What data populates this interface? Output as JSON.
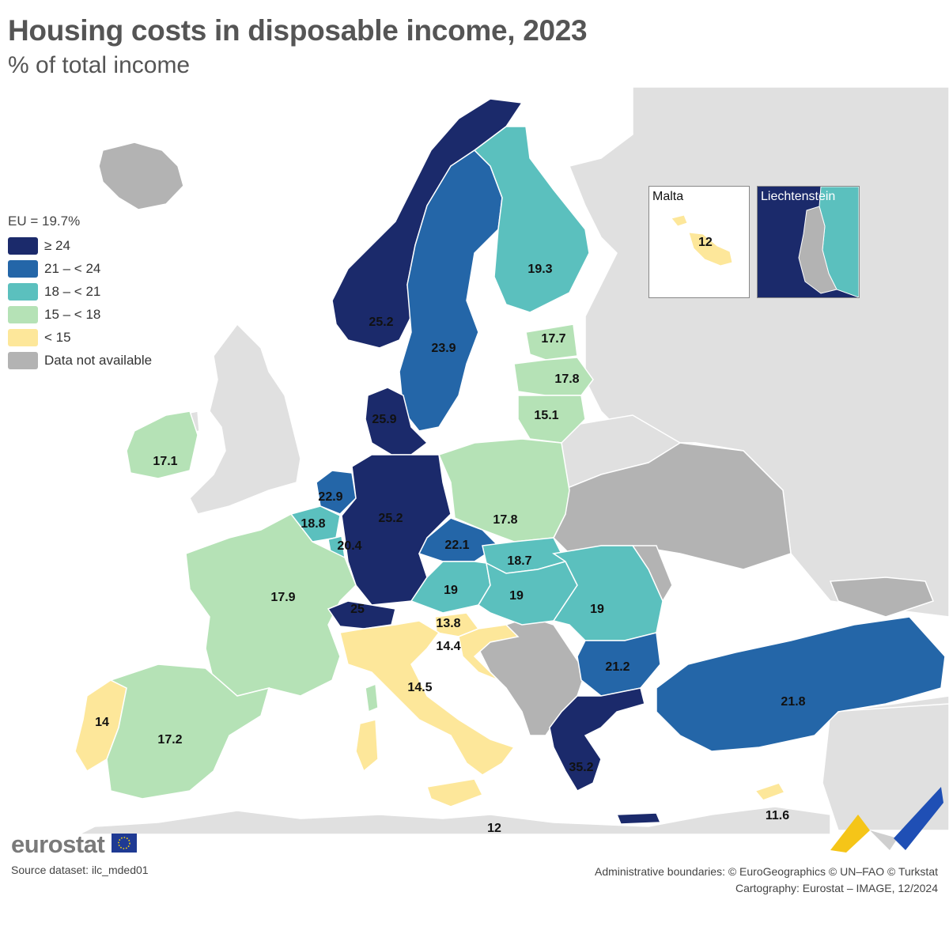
{
  "title": "Housing costs in disposable income, 2023",
  "subtitle": "% of total income",
  "legend": {
    "eu_label": "EU = 19.7%",
    "classes": [
      {
        "label": "≥ 24",
        "color": "#1b2a6b"
      },
      {
        "label": "21 – < 24",
        "color": "#2466a8"
      },
      {
        "label": "18 – < 21",
        "color": "#5bc0be"
      },
      {
        "label": "15 – < 18",
        "color": "#b5e2b6"
      },
      {
        "label": "< 15",
        "color": "#fde79a"
      },
      {
        "label": "Data not available",
        "color": "#b3b3b3"
      }
    ]
  },
  "colors": {
    "sea": "#ffffff",
    "non_eu_land": "#e0e0e0",
    "border": "#555555"
  },
  "countries": [
    {
      "name": "Norway",
      "value": 25.2,
      "label": "25.2"
    },
    {
      "name": "Sweden",
      "value": 23.9,
      "label": "23.9"
    },
    {
      "name": "Finland",
      "value": 19.3,
      "label": "19.3"
    },
    {
      "name": "Estonia",
      "value": 17.7,
      "label": "17.7"
    },
    {
      "name": "Latvia",
      "value": 17.8,
      "label": "17.8"
    },
    {
      "name": "Lithuania",
      "value": 15.1,
      "label": "15.1"
    },
    {
      "name": "Denmark",
      "value": 25.9,
      "label": "25.9"
    },
    {
      "name": "Ireland",
      "value": 17.1,
      "label": "17.1"
    },
    {
      "name": "Netherlands",
      "value": 22.9,
      "label": "22.9"
    },
    {
      "name": "Belgium",
      "value": 18.8,
      "label": "18.8"
    },
    {
      "name": "Luxembourg",
      "value": 20.4,
      "label": "20.4"
    },
    {
      "name": "Germany",
      "value": 25.2,
      "label": "25.2"
    },
    {
      "name": "Poland",
      "value": 17.8,
      "label": "17.8"
    },
    {
      "name": "Czechia",
      "value": 22.1,
      "label": "22.1"
    },
    {
      "name": "Slovakia",
      "value": 18.7,
      "label": "18.7"
    },
    {
      "name": "Austria",
      "value": 19,
      "label": "19"
    },
    {
      "name": "Hungary",
      "value": 19,
      "label": "19"
    },
    {
      "name": "Romania",
      "value": 19,
      "label": "19"
    },
    {
      "name": "France",
      "value": 17.9,
      "label": "17.9"
    },
    {
      "name": "Switzerland",
      "value": 25,
      "label": "25"
    },
    {
      "name": "Slovenia",
      "value": 13.8,
      "label": "13.8"
    },
    {
      "name": "Croatia",
      "value": 14.4,
      "label": "14.4"
    },
    {
      "name": "Italy",
      "value": 14.5,
      "label": "14.5"
    },
    {
      "name": "Bulgaria",
      "value": 21.2,
      "label": "21.2"
    },
    {
      "name": "Türkiye",
      "value": 21.8,
      "label": "21.8"
    },
    {
      "name": "Greece",
      "value": 35.2,
      "label": "35.2"
    },
    {
      "name": "Portugal",
      "value": 14,
      "label": "14"
    },
    {
      "name": "Spain",
      "value": 17.2,
      "label": "17.2"
    },
    {
      "name": "Malta",
      "value": 12,
      "label": "12"
    },
    {
      "name": "Cyprus",
      "value": 11.6,
      "label": "11.6"
    },
    {
      "name": "Liechtenstein",
      "value": null,
      "label": ""
    }
  ],
  "insets": {
    "malta_title": "Malta",
    "malta_value": "12",
    "liechtenstein_title": "Liechtenstein"
  },
  "footer": {
    "brand": "eurostat",
    "source": "Source dataset: ilc_mded01",
    "boundaries": "Administrative boundaries: © EuroGeographics © UN–FAO © Turkstat",
    "cartography": "Cartography: Eurostat – IMAGE, 12/2024"
  }
}
